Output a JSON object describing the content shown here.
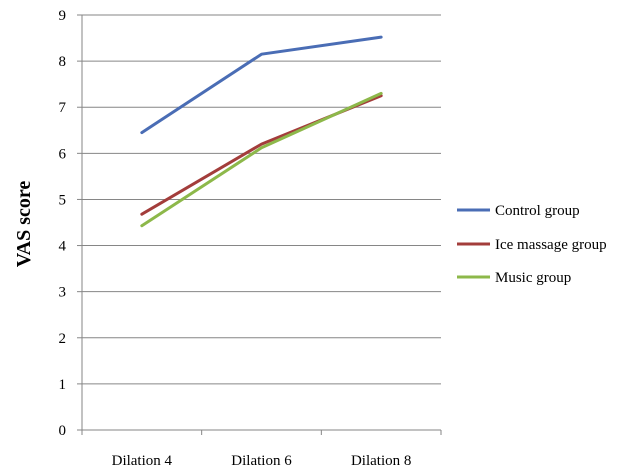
{
  "chart_data": {
    "type": "line",
    "categories": [
      "Dilation 4",
      "Dilation 6",
      "Dilation 8"
    ],
    "series": [
      {
        "name": "Control group",
        "values": [
          6.45,
          8.15,
          8.52
        ],
        "color": "#4a6db5"
      },
      {
        "name": "Ice massage group",
        "values": [
          4.68,
          6.2,
          7.25
        ],
        "color": "#a33d3b"
      },
      {
        "name": "Music group",
        "values": [
          4.43,
          6.12,
          7.3
        ],
        "color": "#8db84a"
      }
    ],
    "ylabel": "VAS score",
    "ylim": [
      0,
      9
    ],
    "yticks": [
      "0",
      "1",
      "2",
      "3",
      "4",
      "5",
      "6",
      "7",
      "8",
      "9"
    ],
    "grid": true,
    "legend_position": "right"
  }
}
